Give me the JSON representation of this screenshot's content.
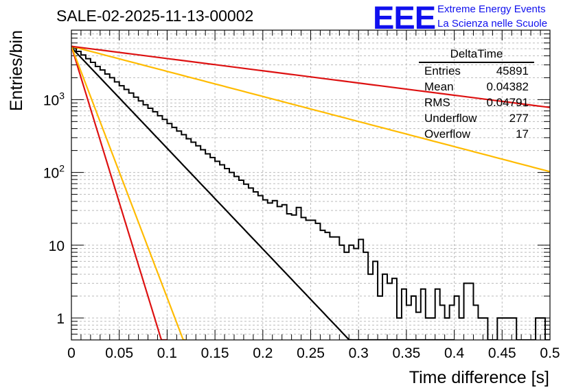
{
  "header": {
    "run_title": "SALE-02-2025-11-13-00002",
    "logo_text": "EEE",
    "logo_line1": "Extreme Energy Events",
    "logo_line2": "La Scienza nelle Scuole"
  },
  "stats": {
    "title": "DeltaTime",
    "rows": [
      {
        "label": "Entries",
        "value": "45891"
      },
      {
        "label": "Mean",
        "value": "0.04382"
      },
      {
        "label": "RMS",
        "value": "0.04791"
      },
      {
        "label": "Underflow",
        "value": "277"
      },
      {
        "label": "Overflow",
        "value": "17"
      }
    ]
  },
  "chart_data": {
    "type": "histogram",
    "title": "SALE-02-2025-11-13-00002",
    "xlabel": "Time difference [s]",
    "ylabel": "Entries/bin",
    "xlim": [
      0,
      0.5
    ],
    "ylim": [
      0.5,
      9000
    ],
    "yscale": "log",
    "grid": true,
    "x_ticks": [
      0,
      0.05,
      0.1,
      0.15,
      0.2,
      0.25,
      0.3,
      0.35,
      0.4,
      0.45,
      0.5
    ],
    "x_tick_labels": [
      "0",
      "0.05",
      "0.1",
      "0.15",
      "0.2",
      "0.25",
      "0.3",
      "0.35",
      "0.4",
      "0.45",
      "0.5"
    ],
    "y_ticks": [
      1,
      10,
      100,
      1000
    ],
    "y_tick_labels": [
      "1",
      "10",
      "10^2",
      "10^3"
    ],
    "histogram": {
      "name": "DeltaTime",
      "bin_width": 0.005,
      "values": [
        5200,
        4600,
        4100,
        3650,
        3250,
        2850,
        2550,
        2250,
        2000,
        1750,
        1550,
        1380,
        1230,
        1080,
        960,
        850,
        760,
        680,
        600,
        535,
        470,
        415,
        370,
        330,
        290,
        260,
        232,
        205,
        180,
        160,
        142,
        127,
        113,
        100,
        88,
        78,
        69,
        61,
        54,
        48,
        42,
        38,
        41,
        34,
        36,
        27,
        26,
        33,
        24,
        22,
        22,
        20,
        16,
        15,
        13,
        13,
        10,
        8,
        10,
        9,
        12,
        8,
        4,
        6,
        2,
        4,
        3,
        3.5,
        1,
        2.5,
        1.5,
        2,
        1.2,
        2.5,
        1,
        1,
        2.5,
        1.5,
        1,
        1.5,
        2,
        1,
        3,
        3,
        1.5,
        1,
        1,
        0.5,
        0.5,
        1,
        1,
        1,
        1,
        0.5,
        0.5,
        0.5,
        0.5,
        1,
        1,
        0.5
      ]
    },
    "fits": [
      {
        "name": "main-fit",
        "color": "#000000",
        "y0": 5200,
        "tau": 0.03138,
        "x_max": 0.4
      },
      {
        "name": "fast-fit-red",
        "color": "#dd1111",
        "y0": 5400,
        "tau": 0.01012,
        "x_max": 0.1
      },
      {
        "name": "fast-fit-yellow",
        "color": "#ffbb00",
        "y0": 5400,
        "tau": 0.01258,
        "x_max": 0.12
      },
      {
        "name": "slow-fit-yellow",
        "color": "#ffbb00",
        "y0": 5400,
        "tau": 0.1261,
        "x_max": 0.5
      },
      {
        "name": "slow-fit-red",
        "color": "#dd1111",
        "y0": 5400,
        "tau": 0.2584,
        "x_max": 0.5
      }
    ]
  }
}
